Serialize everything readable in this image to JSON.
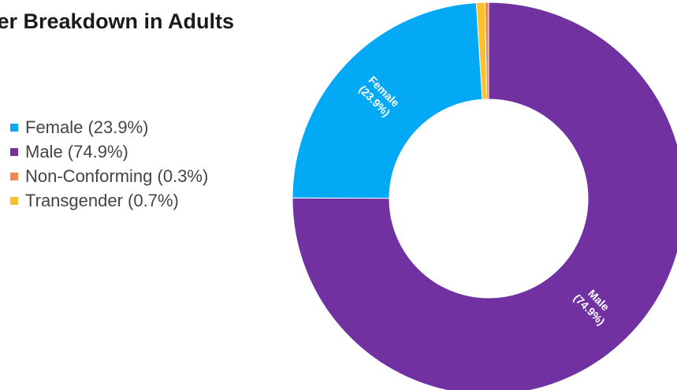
{
  "chart_data": {
    "type": "pie",
    "title": "der Breakdown in Adults",
    "donut": true,
    "categories": [
      "Female",
      "Male",
      "Non-Conforming",
      "Transgender"
    ],
    "values": [
      23.9,
      74.9,
      0.3,
      0.7
    ],
    "colors": [
      "#03a9f4",
      "#7131a1",
      "#f0874c",
      "#fbc02d"
    ],
    "legend": {
      "placement": "left",
      "entries": [
        "Female (23.9%)",
        "Male (74.9%)",
        "Non-Conforming (0.3%)",
        "Transgender (0.7%)"
      ]
    },
    "slice_labels": [
      {
        "category": "Female",
        "name": "Female",
        "value": "(23.9%)"
      },
      {
        "category": "Male",
        "name": "Male",
        "value": "(74.9%)"
      }
    ]
  }
}
